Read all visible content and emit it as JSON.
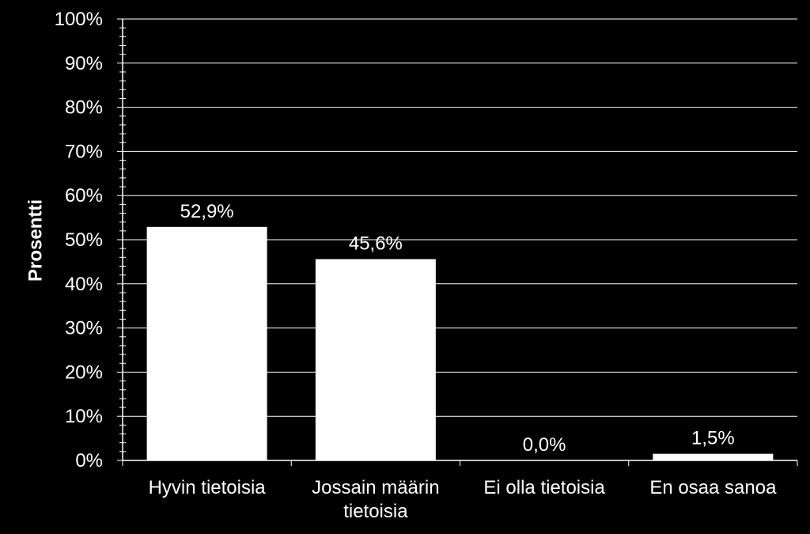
{
  "chart_data": {
    "type": "bar",
    "categories": [
      [
        "Hyvin tietoisia"
      ],
      [
        "Jossain määrin",
        "tietoisia"
      ],
      [
        "Ei olla tietoisia"
      ],
      [
        "En osaa sanoa"
      ]
    ],
    "values": [
      52.9,
      45.6,
      0.0,
      1.5
    ],
    "data_labels": [
      "52,9%",
      "45,6%",
      "0,0%",
      "1,5%"
    ],
    "ylabel": "Prosentti",
    "ylim": [
      0,
      100
    ],
    "y_ticks": [
      {
        "value": 0,
        "label": "0%"
      },
      {
        "value": 10,
        "label": "10%"
      },
      {
        "value": 20,
        "label": "20%"
      },
      {
        "value": 30,
        "label": "30%"
      },
      {
        "value": 40,
        "label": "40%"
      },
      {
        "value": 50,
        "label": "50%"
      },
      {
        "value": 60,
        "label": "60%"
      },
      {
        "value": 70,
        "label": "70%"
      },
      {
        "value": 80,
        "label": "80%"
      },
      {
        "value": 90,
        "label": "90%"
      },
      {
        "value": 100,
        "label": "100%"
      }
    ],
    "grid": true,
    "colors": {
      "background": "#000000",
      "bar": "#ffffff",
      "grid": "#ffffff",
      "text": "#ffffff"
    }
  }
}
